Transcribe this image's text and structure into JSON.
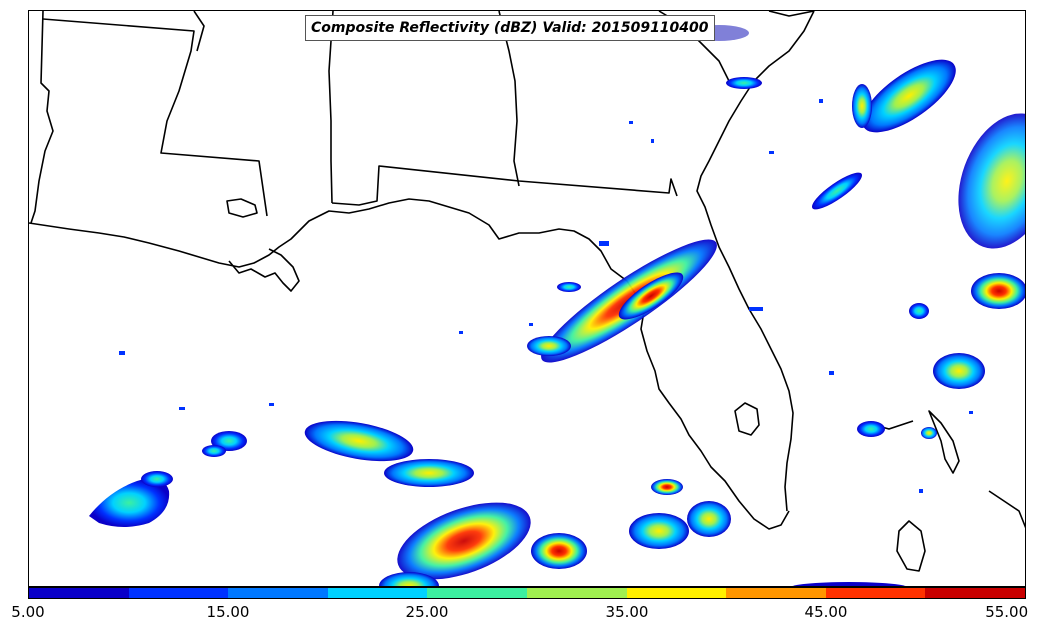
{
  "title": "Composite Reflectivity (dBZ) Valid: 201509110400",
  "colorbar": {
    "colors": [
      "#0a00c8",
      "#0032ff",
      "#0078ff",
      "#00d2ff",
      "#3cf0a0",
      "#a0f050",
      "#fff000",
      "#ff9600",
      "#ff3200",
      "#c80000"
    ],
    "tick_labels": [
      "5.00",
      "15.00",
      "25.00",
      "35.00",
      "45.00",
      "55.00"
    ],
    "min": 5,
    "max": 55
  },
  "map": {
    "background": "#ffffff",
    "boundary_color": "#000000"
  }
}
